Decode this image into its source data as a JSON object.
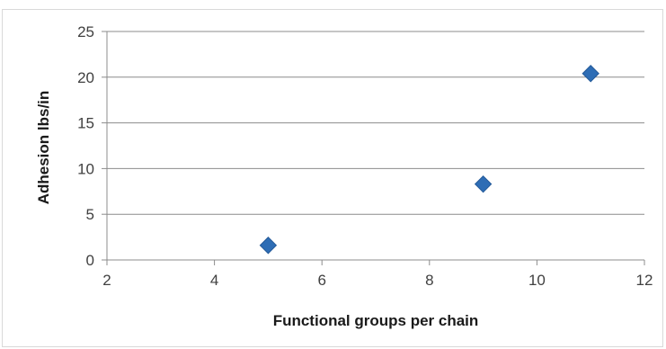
{
  "chart_data": {
    "type": "scatter",
    "title": "",
    "xlabel": "Functional groups per chain",
    "ylabel": "Adhesion lbs/in",
    "xlim": [
      2,
      12
    ],
    "ylim": [
      0,
      25
    ],
    "x_ticks": [
      2,
      4,
      6,
      8,
      10,
      12
    ],
    "y_ticks": [
      0,
      5,
      10,
      15,
      20,
      25
    ],
    "grid": "horizontal",
    "legend": "none",
    "marker": "diamond",
    "color": "#2e6db5",
    "series": [
      {
        "x": [
          5,
          9,
          11
        ],
        "y": [
          1.6,
          8.3,
          20.4
        ]
      }
    ]
  }
}
